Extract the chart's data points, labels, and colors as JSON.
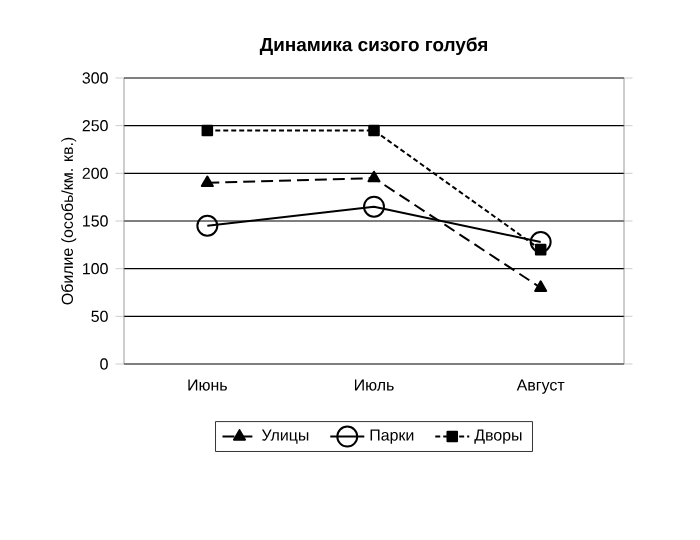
{
  "chart_data": {
    "type": "line",
    "title": "Динамика сизого голубя",
    "ylabel": "Обилие (особь/км. кв.)",
    "categories": [
      "Июнь",
      "Июль",
      "Август"
    ],
    "series": [
      {
        "name": "Улицы",
        "color": "#000000",
        "values": [
          190,
          195,
          80
        ],
        "marker": "triangle",
        "line_style": "dashed"
      },
      {
        "name": "Парки",
        "color": "#000000",
        "values": [
          145,
          165,
          128
        ],
        "marker": "circle",
        "line_style": "solid"
      },
      {
        "name": "Дворы",
        "color": "#000000",
        "values": [
          245,
          245,
          120
        ],
        "marker": "square",
        "line_style": "dotted"
      }
    ],
    "ylim": [
      0,
      300
    ],
    "yticks": [
      0,
      50,
      100,
      150,
      200,
      250,
      300
    ],
    "grid": "y",
    "legend": "bottom"
  }
}
